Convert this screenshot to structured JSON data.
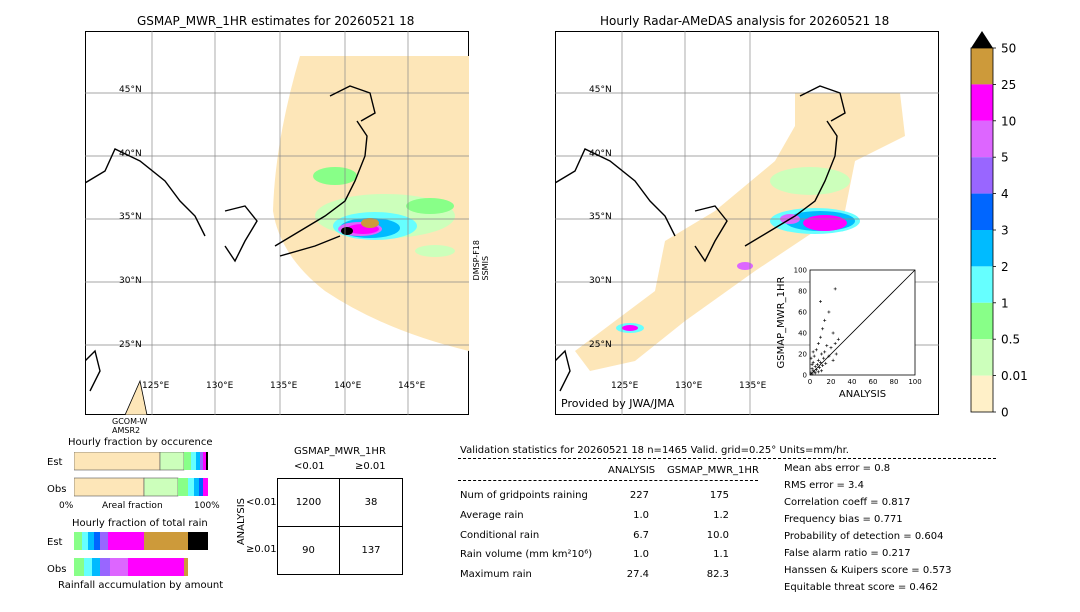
{
  "left_map": {
    "title": "GSMAP_MWR_1HR estimates for 20260521 18",
    "lat_labels": [
      "45°N",
      "40°N",
      "35°N",
      "30°N",
      "25°N"
    ],
    "lon_labels": [
      "125°E",
      "130°E",
      "135°E",
      "140°E",
      "145°E"
    ],
    "satellite_right": "DMSP-F18\nSSMIS",
    "satellite_bottom_1": "GCOM-W",
    "satellite_bottom_2": "AMSR2"
  },
  "right_map": {
    "title": "Hourly Radar-AMeDAS analysis for 20260521 18",
    "lat_labels": [
      "45°N",
      "40°N",
      "35°N",
      "30°N",
      "25°N"
    ],
    "lon_labels": [
      "125°E",
      "130°E",
      "135°E"
    ],
    "credit": "Provided by JWA/JMA"
  },
  "colorbar": {
    "labels": [
      "50",
      "25",
      "10",
      "5",
      "4",
      "3",
      "2",
      "1",
      "0.5",
      "0.01",
      "0"
    ],
    "colors": [
      "#cd9a3a",
      "#ff00ff",
      "#dd66ff",
      "#9966ff",
      "#0066ff",
      "#00bbff",
      "#66ffff",
      "#88ff88",
      "#ccffbb",
      "#fff0c8"
    ]
  },
  "occurrence": {
    "title": "Hourly fraction by occurence",
    "rows": [
      "Est",
      "Obs"
    ],
    "axis_left": "0%",
    "axis_mid": "Areal fraction",
    "axis_right": "100%"
  },
  "total_rain": {
    "title": "Hourly fraction of total rain",
    "rows": [
      "Est",
      "Obs"
    ],
    "footer": "Rainfall accumulation by amount"
  },
  "contingency": {
    "title": "GSMAP_MWR_1HR",
    "col_lt": "<0.01",
    "col_ge": "≥0.01",
    "row_axis": "ANALYSIS",
    "row_lt": "<0.01",
    "row_ge": "≥0.01",
    "cells": [
      "1200",
      "38",
      "90",
      "137"
    ]
  },
  "validation": {
    "header": "Validation statistics for 20260521 18  n=1465 Valid. grid=0.25° Units=mm/hr.",
    "col1": "ANALYSIS",
    "col2": "GSMAP_MWR_1HR",
    "rows": [
      {
        "label": "Num of gridpoints raining",
        "a": "227",
        "g": "175"
      },
      {
        "label": "Average rain",
        "a": "1.0",
        "g": "1.2"
      },
      {
        "label": "Conditional rain",
        "a": "6.7",
        "g": "10.0"
      },
      {
        "label": "Rain volume (mm km²10⁶)",
        "a": "1.0",
        "g": "1.1"
      },
      {
        "label": "Maximum rain",
        "a": "27.4",
        "g": "82.3"
      }
    ],
    "scores": [
      "Mean abs error =    0.8",
      "RMS error =    3.4",
      "Correlation coeff =  0.817",
      "Frequency bias =  0.771",
      "Probability of detection =  0.604",
      "False alarm ratio =  0.217",
      "Hanssen & Kuipers score =  0.573",
      "Equitable threat score =  0.462"
    ]
  },
  "chart_data": {
    "type": "scatter",
    "xlabel": "ANALYSIS",
    "ylabel": "GSMAP_MWR_1HR",
    "xlim": [
      0,
      100
    ],
    "ylim": [
      0,
      100
    ],
    "ticks": [
      "0",
      "20",
      "40",
      "60",
      "80",
      "100"
    ],
    "points": [
      [
        1,
        2
      ],
      [
        2,
        1
      ],
      [
        3,
        4
      ],
      [
        2,
        6
      ],
      [
        4,
        3
      ],
      [
        5,
        8
      ],
      [
        3,
        12
      ],
      [
        6,
        5
      ],
      [
        7,
        10
      ],
      [
        8,
        14
      ],
      [
        4,
        18
      ],
      [
        9,
        7
      ],
      [
        10,
        12
      ],
      [
        11,
        20
      ],
      [
        6,
        24
      ],
      [
        12,
        9
      ],
      [
        13,
        16
      ],
      [
        14,
        22
      ],
      [
        8,
        30
      ],
      [
        15,
        11
      ],
      [
        16,
        28
      ],
      [
        10,
        36
      ],
      [
        18,
        18
      ],
      [
        20,
        26
      ],
      [
        12,
        44
      ],
      [
        22,
        14
      ],
      [
        24,
        30
      ],
      [
        14,
        52
      ],
      [
        25,
        20
      ],
      [
        27,
        34
      ],
      [
        18,
        60
      ],
      [
        22,
        40
      ],
      [
        10,
        70
      ],
      [
        24,
        82
      ],
      [
        2,
        10
      ],
      [
        5,
        2
      ],
      [
        1,
        16
      ],
      [
        3,
        22
      ],
      [
        8,
        3
      ],
      [
        11,
        4
      ]
    ]
  }
}
